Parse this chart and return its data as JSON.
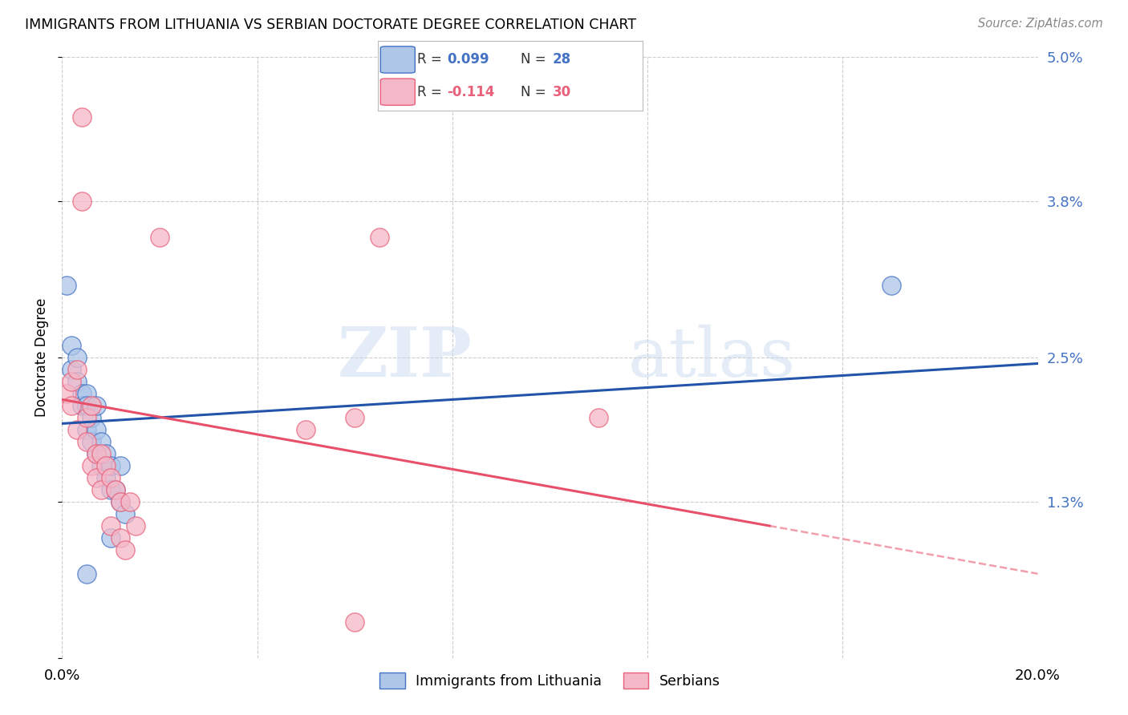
{
  "title": "IMMIGRANTS FROM LITHUANIA VS SERBIAN DOCTORATE DEGREE CORRELATION CHART",
  "source": "Source: ZipAtlas.com",
  "ylabel": "Doctorate Degree",
  "xlim": [
    0.0,
    0.2
  ],
  "ylim": [
    0.0,
    0.05
  ],
  "yticks": [
    0.0,
    0.013,
    0.025,
    0.038,
    0.05
  ],
  "ytick_labels": [
    "",
    "1.3%",
    "2.5%",
    "3.8%",
    "5.0%"
  ],
  "xticks": [
    0.0,
    0.04,
    0.08,
    0.12,
    0.16,
    0.2
  ],
  "xtick_labels": [
    "0.0%",
    "",
    "",
    "",
    "",
    "20.0%"
  ],
  "blue_color": "#aec6e8",
  "pink_color": "#f4b8c8",
  "blue_edge_color": "#4472c4",
  "pink_edge_color": "#e8607a",
  "blue_line_color": "#2255aa",
  "pink_line_color": "#e8506a",
  "watermark_color": "#d8eaf8",
  "background_color": "#ffffff",
  "grid_color": "#cccccc",
  "blue_points_x": [
    0.001,
    0.002,
    0.002,
    0.003,
    0.003,
    0.004,
    0.004,
    0.005,
    0.005,
    0.005,
    0.006,
    0.006,
    0.007,
    0.007,
    0.007,
    0.008,
    0.008,
    0.009,
    0.009,
    0.01,
    0.01,
    0.01,
    0.011,
    0.012,
    0.012,
    0.013,
    0.005,
    0.17
  ],
  "blue_points_y": [
    0.031,
    0.026,
    0.024,
    0.025,
    0.023,
    0.022,
    0.021,
    0.022,
    0.021,
    0.019,
    0.02,
    0.018,
    0.021,
    0.019,
    0.017,
    0.018,
    0.016,
    0.017,
    0.015,
    0.016,
    0.014,
    0.01,
    0.014,
    0.016,
    0.013,
    0.012,
    0.007,
    0.031
  ],
  "pink_points_x": [
    0.001,
    0.002,
    0.002,
    0.003,
    0.003,
    0.004,
    0.004,
    0.005,
    0.005,
    0.006,
    0.006,
    0.007,
    0.007,
    0.008,
    0.008,
    0.009,
    0.01,
    0.01,
    0.011,
    0.012,
    0.012,
    0.013,
    0.014,
    0.015,
    0.05,
    0.065,
    0.11,
    0.02,
    0.06,
    0.06
  ],
  "pink_points_y": [
    0.022,
    0.023,
    0.021,
    0.024,
    0.019,
    0.045,
    0.038,
    0.02,
    0.018,
    0.021,
    0.016,
    0.017,
    0.015,
    0.017,
    0.014,
    0.016,
    0.015,
    0.011,
    0.014,
    0.013,
    0.01,
    0.009,
    0.013,
    0.011,
    0.019,
    0.035,
    0.02,
    0.035,
    0.003,
    0.02
  ],
  "blue_line_x0": 0.0,
  "blue_line_y0": 0.0195,
  "blue_line_x1": 0.2,
  "blue_line_y1": 0.0245,
  "pink_line_x0": 0.0,
  "pink_line_y0": 0.0215,
  "pink_line_x1_solid": 0.145,
  "pink_line_x1": 0.2,
  "pink_line_y1": 0.007
}
